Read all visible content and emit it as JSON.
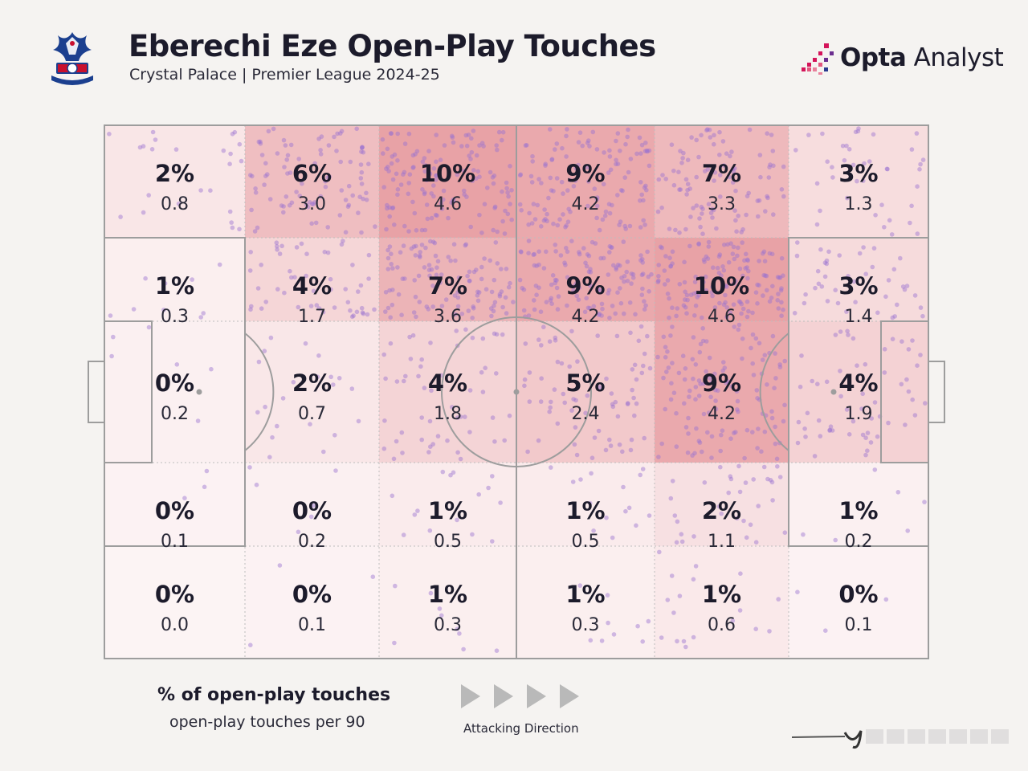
{
  "header": {
    "title": "Eberechi Eze Open-Play Touches",
    "subtitle": "Crystal Palace | Premier League 2024-25",
    "brand_bold": "Opta",
    "brand_light": " Analyst",
    "crest_text": "CRYSTAL PALACE F.C."
  },
  "legend": {
    "title": "% of open-play touches",
    "subtitle": "open-play touches per 90",
    "direction_label": "Attacking Direction"
  },
  "colors": {
    "background": "#f5f3f1",
    "heat_base": "#ffffff",
    "heat_max": "#e8a2a6",
    "dot": "#9a72d0",
    "line": "#9d9d9d",
    "brand_accent": "#d4145a"
  },
  "chart_data": {
    "type": "heatmap",
    "title": "Eberechi Eze Open-Play Touches",
    "subtitle": "Crystal Palace | Premier League 2024-25",
    "legend": "top-left of zone: % of open-play touches; below: open-play touches per 90",
    "columns": 6,
    "rows": 5,
    "zones": [
      [
        {
          "pct": "2%",
          "p90": "0.8"
        },
        {
          "pct": "6%",
          "p90": "3.0"
        },
        {
          "pct": "10%",
          "p90": "4.6"
        },
        {
          "pct": "9%",
          "p90": "4.2"
        },
        {
          "pct": "7%",
          "p90": "3.3"
        },
        {
          "pct": "3%",
          "p90": "1.3"
        }
      ],
      [
        {
          "pct": "1%",
          "p90": "0.3"
        },
        {
          "pct": "4%",
          "p90": "1.7"
        },
        {
          "pct": "7%",
          "p90": "3.6"
        },
        {
          "pct": "9%",
          "p90": "4.2"
        },
        {
          "pct": "10%",
          "p90": "4.6"
        },
        {
          "pct": "3%",
          "p90": "1.4"
        }
      ],
      [
        {
          "pct": "0%",
          "p90": "0.2"
        },
        {
          "pct": "2%",
          "p90": "0.7"
        },
        {
          "pct": "4%",
          "p90": "1.8"
        },
        {
          "pct": "5%",
          "p90": "2.4"
        },
        {
          "pct": "9%",
          "p90": "4.2"
        },
        {
          "pct": "4%",
          "p90": "1.9"
        }
      ],
      [
        {
          "pct": "0%",
          "p90": "0.1"
        },
        {
          "pct": "0%",
          "p90": "0.2"
        },
        {
          "pct": "1%",
          "p90": "0.5"
        },
        {
          "pct": "1%",
          "p90": "0.5"
        },
        {
          "pct": "2%",
          "p90": "1.1"
        },
        {
          "pct": "1%",
          "p90": "0.2"
        }
      ],
      [
        {
          "pct": "0%",
          "p90": "0.0"
        },
        {
          "pct": "0%",
          "p90": "0.1"
        },
        {
          "pct": "1%",
          "p90": "0.3"
        },
        {
          "pct": "1%",
          "p90": "0.3"
        },
        {
          "pct": "1%",
          "p90": "0.6"
        },
        {
          "pct": "0%",
          "p90": "0.1"
        }
      ]
    ]
  }
}
